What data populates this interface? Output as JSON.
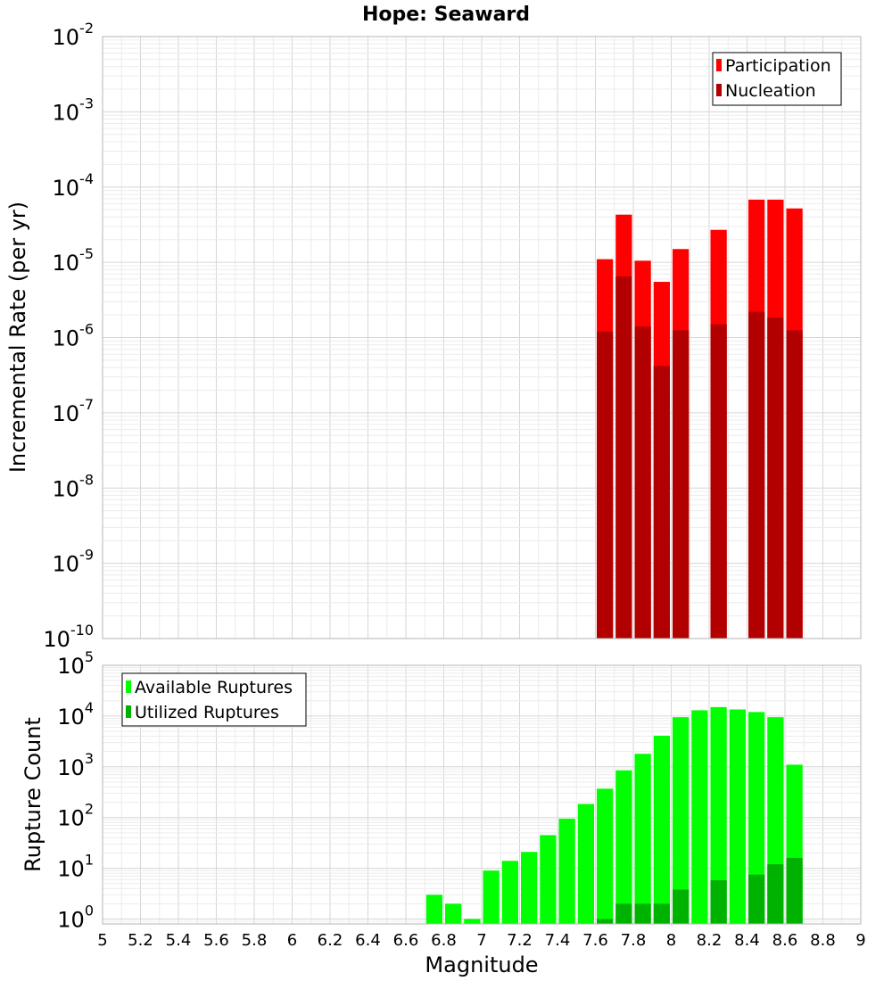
{
  "chart_data": [
    {
      "type": "bar",
      "title": "Hope: Seaward",
      "ylabel": "Incremental Rate (per yr)",
      "xlabel": "",
      "xlim": [
        5,
        9
      ],
      "ylim": [
        1e-10,
        0.01
      ],
      "yscale": "log",
      "yticks": [
        {
          "base": "10",
          "exp": "-10",
          "value": 1e-10
        },
        {
          "base": "10",
          "exp": "-9",
          "value": 1e-09
        },
        {
          "base": "10",
          "exp": "-8",
          "value": 1e-08
        },
        {
          "base": "10",
          "exp": "-7",
          "value": 1e-07
        },
        {
          "base": "10",
          "exp": "-6",
          "value": 1e-06
        },
        {
          "base": "10",
          "exp": "-5",
          "value": 1e-05
        },
        {
          "base": "10",
          "exp": "-4",
          "value": 0.0001
        },
        {
          "base": "10",
          "exp": "-3",
          "value": 0.001
        },
        {
          "base": "10",
          "exp": "-2",
          "value": 0.01
        }
      ],
      "grid": true,
      "legend": "top-right",
      "series": [
        {
          "name": "Participation",
          "color": "#ff0000",
          "x": [
            7.65,
            7.75,
            7.85,
            7.95,
            8.05,
            8.25,
            8.45,
            8.55,
            8.65
          ],
          "values": [
            1.1e-05,
            4.3e-05,
            1.05e-05,
            5.5e-06,
            1.5e-05,
            2.7e-05,
            6.8e-05,
            6.8e-05,
            5.2e-05
          ]
        },
        {
          "name": "Nucleation",
          "color": "#b20000",
          "x": [
            7.65,
            7.75,
            7.85,
            7.95,
            8.05,
            8.25,
            8.45,
            8.55,
            8.65
          ],
          "values": [
            1.2e-06,
            6.5e-06,
            1.4e-06,
            4.2e-07,
            1.25e-06,
            1.5e-06,
            2.2e-06,
            1.85e-06,
            1.25e-06
          ]
        }
      ]
    },
    {
      "type": "bar",
      "title": "",
      "ylabel": "Rupture Count",
      "xlabel": "Magnitude",
      "xlim": [
        5,
        9
      ],
      "ylim": [
        0.8,
        100000
      ],
      "yscale": "log",
      "yticks": [
        {
          "base": "10",
          "exp": "0",
          "value": 1
        },
        {
          "base": "10",
          "exp": "1",
          "value": 10
        },
        {
          "base": "10",
          "exp": "2",
          "value": 100
        },
        {
          "base": "10",
          "exp": "3",
          "value": 1000
        },
        {
          "base": "10",
          "exp": "4",
          "value": 10000
        },
        {
          "base": "10",
          "exp": "5",
          "value": 100000
        }
      ],
      "xticks": [
        "5",
        "5.2",
        "5.4",
        "5.6",
        "5.8",
        "6",
        "6.2",
        "6.4",
        "6.6",
        "6.8",
        "7",
        "7.2",
        "7.4",
        "7.6",
        "7.8",
        "8",
        "8.2",
        "8.4",
        "8.6",
        "8.8",
        "9"
      ],
      "grid": true,
      "legend": "top-left",
      "series": [
        {
          "name": "Available Ruptures",
          "color": "#00ff00",
          "x": [
            6.75,
            6.85,
            6.95,
            7.05,
            7.15,
            7.25,
            7.35,
            7.45,
            7.55,
            7.65,
            7.75,
            7.85,
            7.95,
            8.05,
            8.15,
            8.25,
            8.35,
            8.45,
            8.55,
            8.65
          ],
          "values": [
            3,
            2,
            1,
            9,
            14,
            21,
            45,
            95,
            185,
            370,
            850,
            1800,
            4100,
            9500,
            13000,
            15000,
            13500,
            12000,
            9500,
            1100
          ]
        },
        {
          "name": "Utilized Ruptures",
          "color": "#00b200",
          "x": [
            7.65,
            7.75,
            7.85,
            7.95,
            8.05,
            8.25,
            8.45,
            8.55,
            8.65
          ],
          "values": [
            1,
            2,
            2,
            2,
            3.8,
            5.8,
            7.5,
            12,
            16
          ]
        }
      ]
    }
  ]
}
